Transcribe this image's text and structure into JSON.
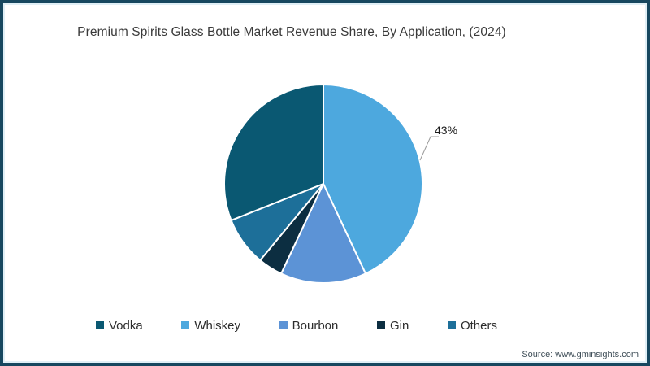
{
  "frame": {
    "border_color": "#17475f",
    "inner_line_color": "#e0eff6"
  },
  "chart": {
    "title": "Premium Spirits Glass Bottle Market Revenue Share, By Application, (2024)",
    "source": "Source: www.gminsights.com"
  },
  "chart_data": {
    "type": "pie",
    "title": "Premium Spirits Glass Bottle Market Revenue Share, By Application, (2024)",
    "categories": [
      "Vodka",
      "Whiskey",
      "Bourbon",
      "Gin",
      "Others"
    ],
    "values": [
      31,
      43,
      14,
      4,
      8
    ],
    "unit": "%",
    "colors": [
      "#0a5872",
      "#4da8de",
      "#5c93d6",
      "#0c2e41",
      "#1d6f99"
    ],
    "start_category": "Whiskey",
    "direction": "clockwise",
    "start_angle_deg": 0,
    "slice_border_color": "#ffffff",
    "data_labels": [
      {
        "category": "Whiskey",
        "text": "43%"
      }
    ],
    "legend_position": "bottom",
    "grid": false
  },
  "legend": {
    "items": [
      {
        "label": "Vodka",
        "color": "#0a5872"
      },
      {
        "label": "Whiskey",
        "color": "#4da8de"
      },
      {
        "label": "Bourbon",
        "color": "#5c93d6"
      },
      {
        "label": "Gin",
        "color": "#0c2e41"
      },
      {
        "label": "Others",
        "color": "#1d6f99"
      }
    ]
  }
}
